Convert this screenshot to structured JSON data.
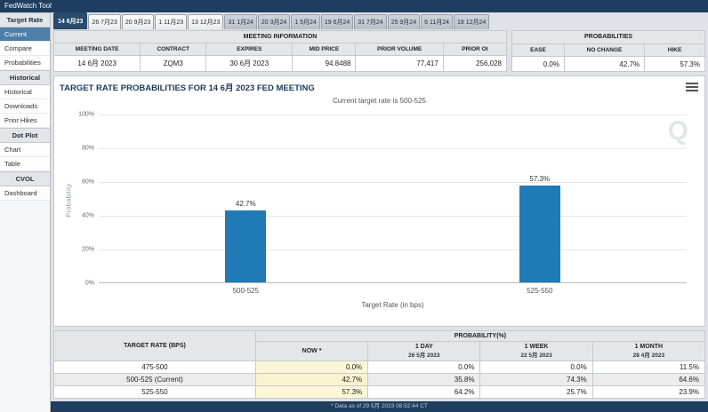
{
  "app": {
    "title": "FedWatch Tool"
  },
  "sidebar": {
    "sections": [
      {
        "header": "Target Rate",
        "items": [
          "Current",
          "Compare",
          "Probabilities"
        ]
      },
      {
        "header": "Historical",
        "items": [
          "Historical",
          "Downloads",
          "Prior Hikes"
        ]
      },
      {
        "header": "Dot Plot",
        "items": [
          "Chart",
          "Table"
        ]
      },
      {
        "header": "CVOL",
        "items": [
          "Dashboard"
        ]
      }
    ]
  },
  "tabs": [
    "14 6月23",
    "26 7月23",
    "20 9月23",
    "1 11月23",
    "13 12月23",
    "31 1月24",
    "20 3月24",
    "1 5月24",
    "19 6月24",
    "31 7月24",
    "25 9月24",
    "6 11月24",
    "18 12月24"
  ],
  "meeting_info": {
    "title": "MEETING INFORMATION",
    "headers": [
      "MEETING DATE",
      "CONTRACT",
      "EXPIRES",
      "MID PRICE",
      "PRIOR VOLUME",
      "PRIOR OI"
    ],
    "values": [
      "14 6月 2023",
      "ZQM3",
      "30 6月 2023",
      "94.8488",
      "77,417",
      "256,028"
    ]
  },
  "probabilities_summary": {
    "title": "PROBABILITIES",
    "headers": [
      "EASE",
      "NO CHANGE",
      "HIKE"
    ],
    "values": [
      "0.0%",
      "42.7%",
      "57.3%"
    ]
  },
  "chart_data": {
    "type": "bar",
    "title": "TARGET RATE PROBABILITIES FOR 14 6月 2023 FED MEETING",
    "subtitle": "Current target rate is 500-525",
    "categories": [
      "500-525",
      "525-550"
    ],
    "values": [
      42.7,
      57.3
    ],
    "value_labels": [
      "42.7%",
      "57.3%"
    ],
    "xlabel": "Target Rate (in bps)",
    "ylabel": "Probability",
    "ylim": [
      0,
      100
    ],
    "yticks": [
      "100%",
      "80%",
      "60%",
      "40%",
      "20%",
      "0%"
    ],
    "bar_color": "#1f7ab5",
    "legend": "none",
    "grid": true,
    "watermark": "Q"
  },
  "prob_table": {
    "col_rate": "TARGET RATE (BPS)",
    "group": "PROBABILITY(%)",
    "cols": [
      {
        "label": "NOW *",
        "sub": ""
      },
      {
        "label": "1 DAY",
        "sub": "26 5月 2023"
      },
      {
        "label": "1 WEEK",
        "sub": "22 5月 2023"
      },
      {
        "label": "1 MONTH",
        "sub": "28 4月 2023"
      }
    ],
    "rows": [
      {
        "rate": "475-500",
        "values": [
          "0.0%",
          "0.0%",
          "0.0%",
          "11.5%"
        ]
      },
      {
        "rate": "500-525 (Current)",
        "values": [
          "42.7%",
          "35.8%",
          "74.3%",
          "64.6%"
        ]
      },
      {
        "rate": "525-550",
        "values": [
          "57.3%",
          "64.2%",
          "25.7%",
          "23.9%"
        ]
      }
    ],
    "footnote": "* Data as of 29 5月 2023 08:52:44 CT"
  }
}
